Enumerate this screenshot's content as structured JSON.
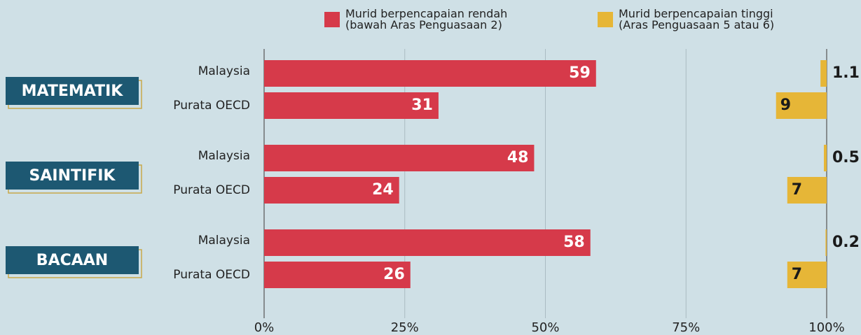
{
  "chart_data": {
    "type": "bar",
    "orientation": "horizontal",
    "groups": [
      "MATEMATIK",
      "SAINTIFIK",
      "BACAAN"
    ],
    "categories": [
      "Malaysia",
      "Purata OECD",
      "Malaysia",
      "Purata OECD",
      "Malaysia",
      "Purata OECD"
    ],
    "series": [
      {
        "name": "Murid berpencapaian rendah\n(bawah Aras Penguasaan 2)",
        "color": "#d63a4a",
        "values": [
          59,
          31,
          48,
          24,
          58,
          26
        ]
      },
      {
        "name": "Murid berpencapaian tinggi\n(Aras Penguasaan 5 atau 6)",
        "color": "#e6b637",
        "values": [
          1.1,
          9,
          0.5,
          7,
          0.2,
          7
        ]
      }
    ],
    "xlim": [
      0,
      100
    ],
    "xticks": [
      {
        "value": 0,
        "label": "0%"
      },
      {
        "value": 25,
        "label": "25%"
      },
      {
        "value": 50,
        "label": "50%"
      },
      {
        "value": 75,
        "label": "75%"
      },
      {
        "value": 100,
        "label": "100%"
      }
    ],
    "grid": true
  }
}
